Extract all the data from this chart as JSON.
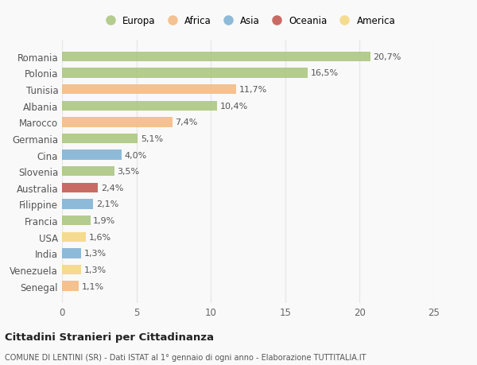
{
  "categories": [
    "Romania",
    "Polonia",
    "Tunisia",
    "Albania",
    "Marocco",
    "Germania",
    "Cina",
    "Slovenia",
    "Australia",
    "Filippine",
    "Francia",
    "USA",
    "India",
    "Venezuela",
    "Senegal"
  ],
  "values": [
    20.7,
    16.5,
    11.7,
    10.4,
    7.4,
    5.1,
    4.0,
    3.5,
    2.4,
    2.1,
    1.9,
    1.6,
    1.3,
    1.3,
    1.1
  ],
  "continents": [
    "Europa",
    "Europa",
    "Africa",
    "Europa",
    "Africa",
    "Europa",
    "Asia",
    "Europa",
    "Oceania",
    "Asia",
    "Europa",
    "America",
    "Asia",
    "America",
    "Africa"
  ],
  "colors": {
    "Europa": "#a8c47a",
    "Africa": "#f5b87e",
    "Asia": "#7bafd4",
    "Oceania": "#c0524a",
    "America": "#f5d67e"
  },
  "legend_order": [
    "Europa",
    "Africa",
    "Asia",
    "Oceania",
    "America"
  ],
  "xlim": [
    0,
    25
  ],
  "xticks": [
    0,
    5,
    10,
    15,
    20,
    25
  ],
  "title": "Cittadini Stranieri per Cittadinanza",
  "subtitle": "COMUNE DI LENTINI (SR) - Dati ISTAT al 1° gennaio di ogni anno - Elaborazione TUTTITALIA.IT",
  "bg_color": "#f9f9f9",
  "grid_color": "#e8e8e8",
  "bar_alpha": 0.85,
  "label_fontsize": 8.0,
  "tick_fontsize": 8.5
}
